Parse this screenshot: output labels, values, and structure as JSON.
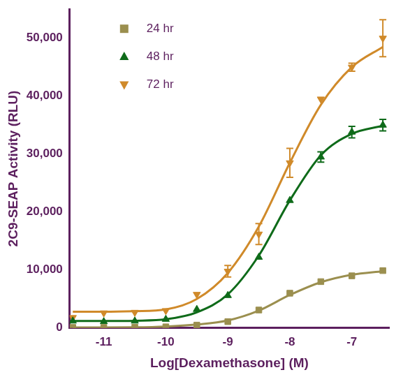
{
  "chart_data": {
    "type": "scatter",
    "x_label": "Log[Dexamethasone] (M)",
    "y_label": "2C9-SEAP Activity (RLU)",
    "x": [
      -11.5,
      -11,
      -10.5,
      -10,
      -9.5,
      -9,
      -8.5,
      -8,
      -7.5,
      -7,
      -6.5
    ],
    "series": [
      {
        "name": "24 hr",
        "color": "#9b8f4f",
        "marker": "square",
        "line_style": "smooth",
        "values": [
          100,
          100,
          150,
          200,
          500,
          1100,
          3100,
          6000,
          8000,
          9000,
          9900
        ],
        "errors": [
          0,
          0,
          0,
          0,
          0,
          0,
          0,
          0,
          0,
          0,
          0
        ],
        "fit": [
          100,
          100,
          120,
          250,
          600,
          1300,
          3000,
          5700,
          7900,
          9200,
          9800
        ]
      },
      {
        "name": "48 hr",
        "color": "#0f6b1a",
        "marker": "triangle",
        "line_style": "smooth",
        "values": [
          1200,
          1100,
          1200,
          1500,
          3200,
          5600,
          12200,
          22000,
          29500,
          33800,
          35000
        ],
        "errors": [
          0,
          0,
          0,
          0,
          0,
          0,
          0,
          0,
          900,
          1000,
          1000
        ],
        "fit": [
          1200,
          1200,
          1250,
          1500,
          2700,
          5800,
          12500,
          22000,
          29800,
          33500,
          34900
        ]
      },
      {
        "name": "72 hr",
        "color": "#d08a2a",
        "marker": "triangle_down",
        "line_style": "smooth",
        "values": [
          1800,
          2600,
          2700,
          3000,
          5800,
          9800,
          16200,
          28500,
          39500,
          45000,
          50000
        ],
        "errors": [
          0,
          0,
          0,
          0,
          0,
          1000,
          1800,
          2500,
          0,
          700,
          3200
        ],
        "fit": [
          2800,
          2800,
          2900,
          3200,
          5000,
          9500,
          17500,
          28500,
          38500,
          45000,
          48500
        ]
      }
    ],
    "xlim": [
      -11.55,
      -6.4
    ],
    "xticks": [
      -11,
      -10,
      -9,
      -8,
      -7
    ],
    "ylim": [
      0,
      55000
    ],
    "yticks": [
      0,
      {
        "value": 10000,
        "label": "10,000"
      },
      {
        "value": 20000,
        "label": "20,000"
      },
      {
        "value": 30000,
        "label": "30,000"
      },
      {
        "value": 40000,
        "label": "40,000"
      },
      {
        "value": 50000,
        "label": "50,000"
      }
    ],
    "grid": false,
    "legend": "upper left"
  }
}
